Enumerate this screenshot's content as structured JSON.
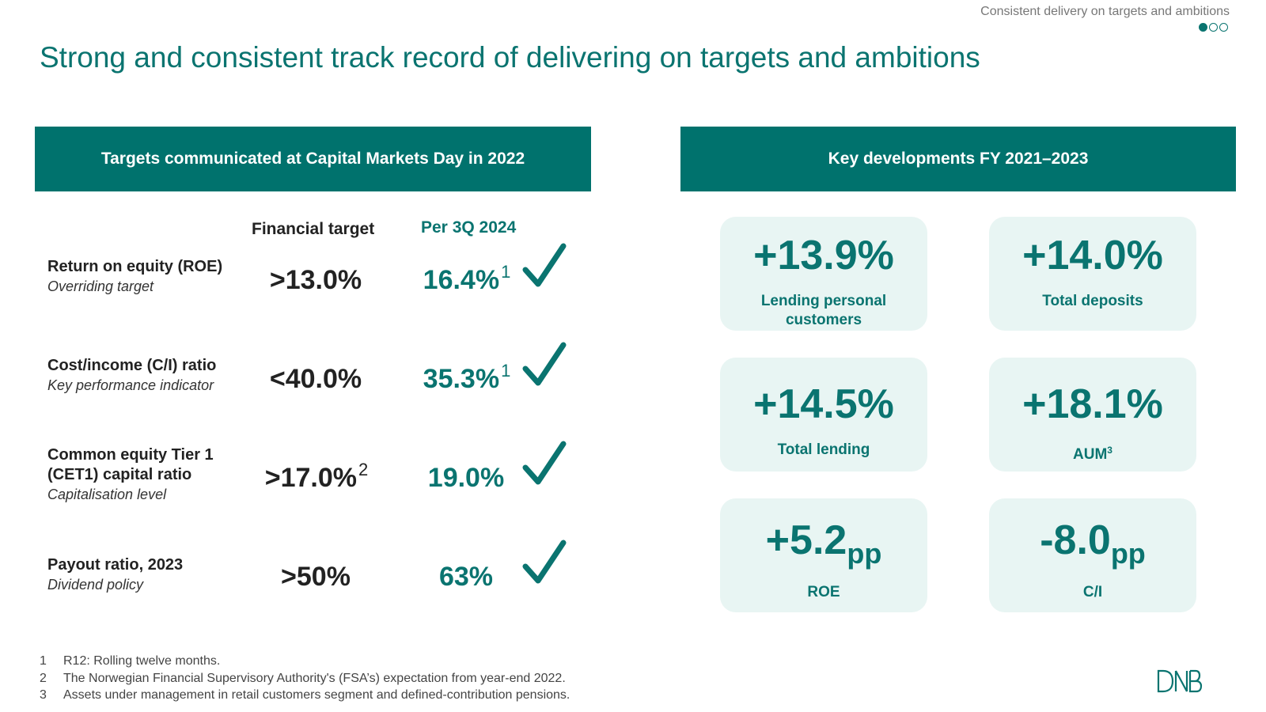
{
  "header": {
    "section": "Consistent delivery on targets and ambitions",
    "title": "Strong and consistent track record of delivering on targets and ambitions"
  },
  "left": {
    "banner": "Targets communicated at Capital Markets Day in 2022",
    "col_financial": "Financial target",
    "col_per": "Per 3Q 2024",
    "rows": [
      {
        "name": "Return on equity (ROE)",
        "sub": "Overriding target",
        "target": ">13.0%",
        "target_fn": "",
        "actual": "16.4%",
        "actual_fn": "1"
      },
      {
        "name": "Cost/income (C/I) ratio",
        "sub": "Key performance indicator",
        "target": "<40.0%",
        "target_fn": "",
        "actual": "35.3%",
        "actual_fn": "1"
      },
      {
        "name": "Common equity Tier 1 (CET1) capital ratio",
        "sub": "Capitalisation level",
        "target": ">17.0%",
        "target_fn": "2",
        "actual": "19.0%",
        "actual_fn": ""
      },
      {
        "name": "Payout ratio, 2023",
        "sub": "Dividend policy",
        "target": ">50%",
        "target_fn": "",
        "actual": "63%",
        "actual_fn": ""
      }
    ]
  },
  "right": {
    "banner": "Key developments FY 2021–2023",
    "cards": [
      {
        "value": "+13.9%",
        "unit": "",
        "label": "Lending personal",
        "label2": "customers",
        "sup": ""
      },
      {
        "value": "+14.0%",
        "unit": "",
        "label": "Total deposits",
        "label2": "",
        "sup": ""
      },
      {
        "value": "+14.5%",
        "unit": "",
        "label": "Total lending",
        "label2": "",
        "sup": ""
      },
      {
        "value": "+18.1%",
        "unit": "",
        "label": "AUM",
        "label2": "",
        "sup": "3"
      },
      {
        "value": "+5.2",
        "unit": "pp",
        "label": "ROE",
        "label2": "",
        "sup": ""
      },
      {
        "value": "-8.0",
        "unit": "pp",
        "label": "C/I",
        "label2": "",
        "sup": ""
      }
    ]
  },
  "footnotes": [
    {
      "num": "1",
      "text": "R12: Rolling twelve months."
    },
    {
      "num": "2",
      "text": "The Norwegian Financial Supervisory Authority's (FSA’s) expectation from year-end 2022."
    },
    {
      "num": "3",
      "text": "Assets under management in retail customers segment and defined-contribution pensions."
    }
  ],
  "logo": "DNB",
  "colors": {
    "accent": "#00726d",
    "card_bg": "#e8f5f3"
  },
  "icons": {
    "check": "checkmark-icon",
    "page_dots": "page-indicator-dots"
  }
}
